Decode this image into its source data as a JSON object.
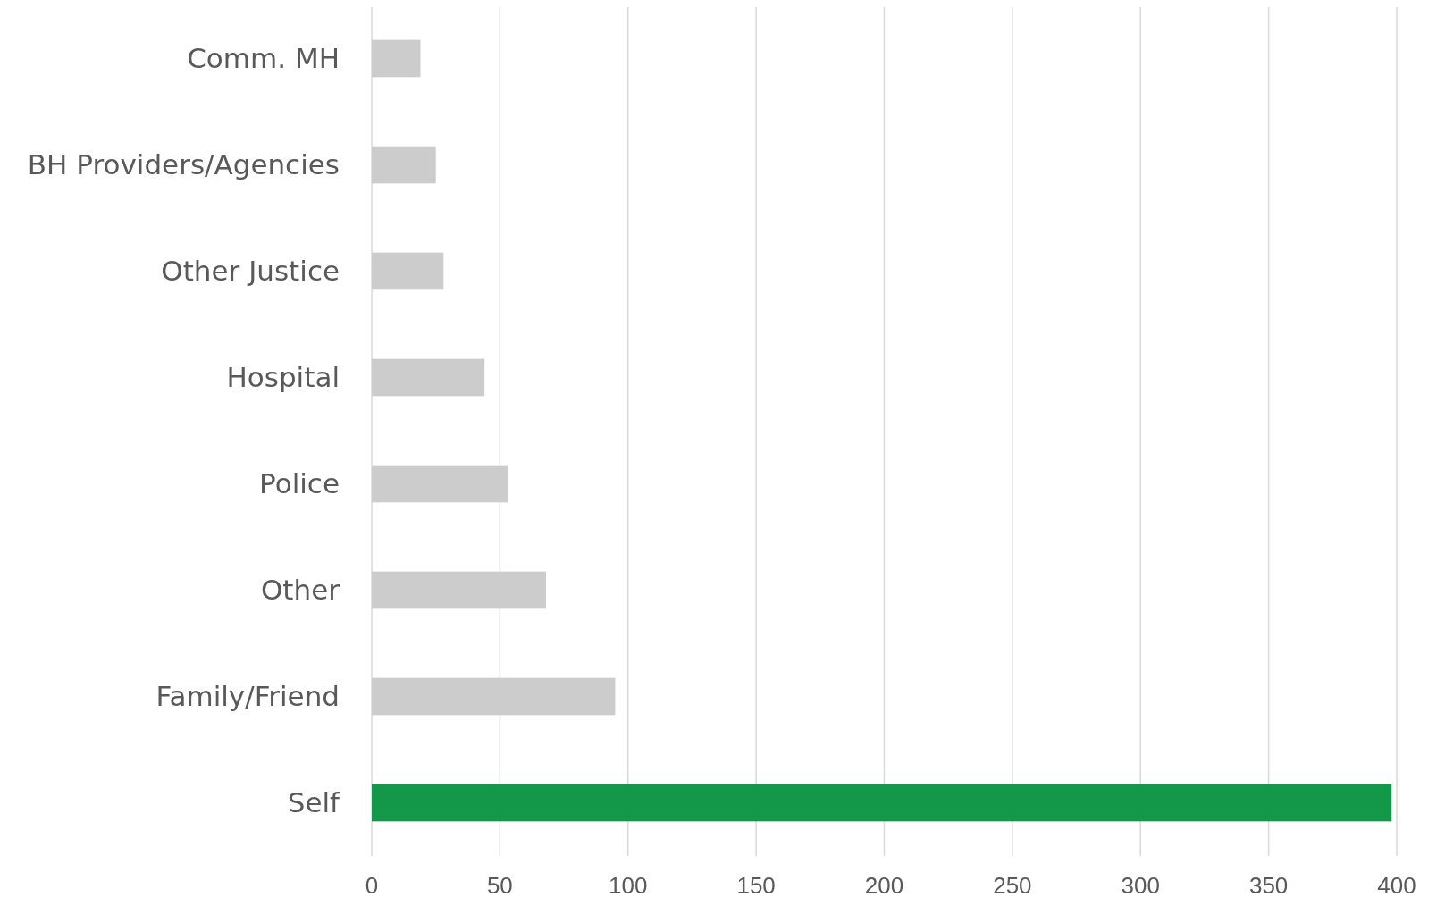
{
  "chart_data": {
    "type": "bar",
    "orientation": "horizontal",
    "categories": [
      "Comm. MH",
      "BH Providers/Agencies",
      "Other Justice",
      "Hospital",
      "Police",
      "Other",
      "Family/Friend",
      "Self"
    ],
    "values": [
      19,
      25,
      28,
      44,
      53,
      68,
      95,
      398
    ],
    "colors": [
      "#cccccc",
      "#cccccc",
      "#cccccc",
      "#cccccc",
      "#cccccc",
      "#cccccc",
      "#cccccc",
      "#13984a"
    ],
    "xlim": [
      0,
      400
    ],
    "xticks": [
      0,
      50,
      100,
      150,
      200,
      250,
      300,
      350,
      400
    ],
    "grid": "x"
  }
}
